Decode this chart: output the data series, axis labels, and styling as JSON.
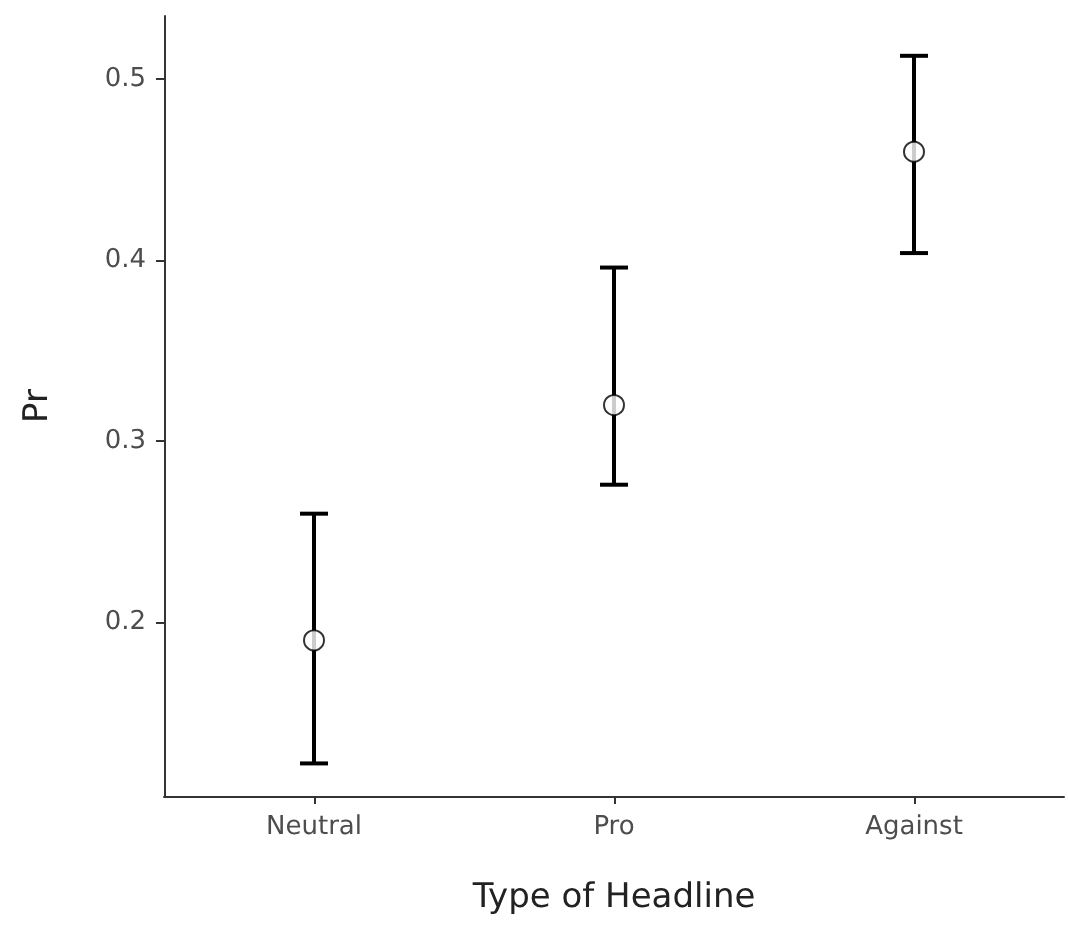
{
  "chart_data": {
    "type": "scatter",
    "xlabel": "Type of Headline",
    "ylabel": "Pr",
    "categories": [
      "Neutral",
      "Pro",
      "Against"
    ],
    "series": [
      {
        "color": "#ffffff",
        "values": [
          0.19,
          0.32,
          0.46
        ],
        "errors": [
          [
            0.122,
            0.26
          ],
          [
            0.276,
            0.396
          ],
          [
            0.404,
            0.513
          ]
        ]
      }
    ],
    "ylim": [
      0.104,
      0.535
    ],
    "yticks": [
      0.2,
      0.3,
      0.4,
      0.5
    ],
    "grid": false,
    "marker": "circle"
  }
}
